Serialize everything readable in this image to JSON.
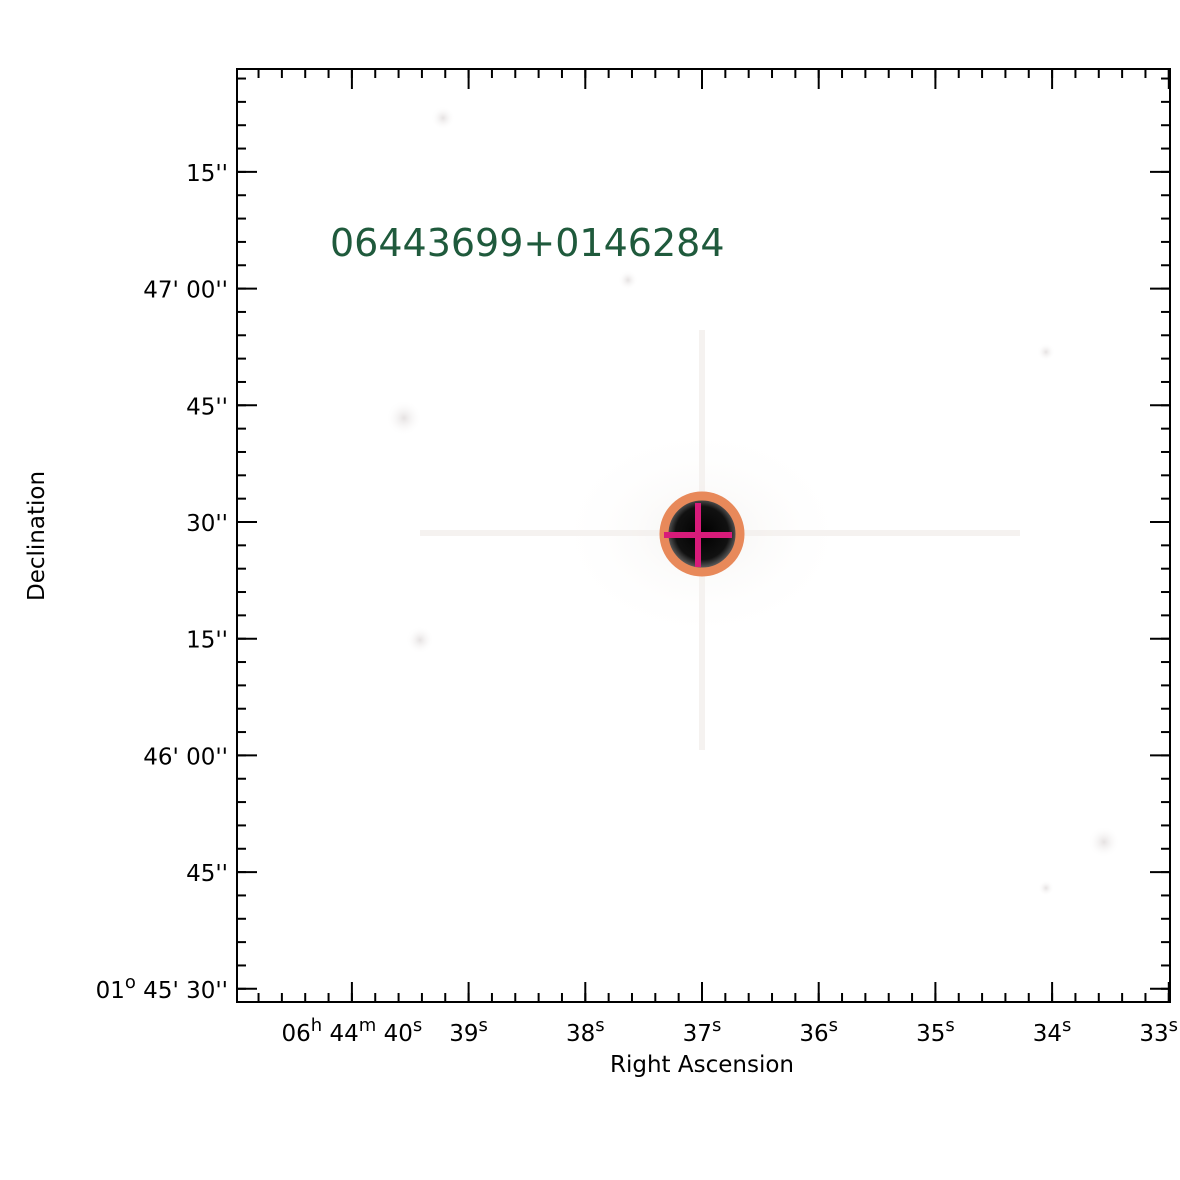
{
  "object_label": "06443699+0146284",
  "axes": {
    "xlabel": "Right Ascension",
    "ylabel": "Declination",
    "x_ticks": [
      {
        "parts": [
          {
            "t": "06"
          },
          {
            "t": "h",
            "sup": true
          },
          {
            "t": " 44"
          },
          {
            "t": "m",
            "sup": true
          },
          {
            "t": " 40"
          },
          {
            "t": "s",
            "sup": true
          }
        ],
        "ra_s": 40
      },
      {
        "parts": [
          {
            "t": "39"
          },
          {
            "t": "s",
            "sup": true
          }
        ],
        "ra_s": 39
      },
      {
        "parts": [
          {
            "t": "38"
          },
          {
            "t": "s",
            "sup": true
          }
        ],
        "ra_s": 38
      },
      {
        "parts": [
          {
            "t": "37"
          },
          {
            "t": "s",
            "sup": true
          }
        ],
        "ra_s": 37
      },
      {
        "parts": [
          {
            "t": "36"
          },
          {
            "t": "s",
            "sup": true
          }
        ],
        "ra_s": 36
      },
      {
        "parts": [
          {
            "t": "35"
          },
          {
            "t": "s",
            "sup": true
          }
        ],
        "ra_s": 35
      },
      {
        "parts": [
          {
            "t": "34"
          },
          {
            "t": "s",
            "sup": true
          }
        ],
        "ra_s": 34
      },
      {
        "parts": [
          {
            "t": "33"
          },
          {
            "t": "s",
            "sup": true
          }
        ],
        "ra_s": 33
      }
    ],
    "y_ticks": [
      {
        "parts": [
          {
            "t": "15''"
          }
        ],
        "dec_arcsec": 75
      },
      {
        "parts": [
          {
            "t": "47' 00''"
          }
        ],
        "dec_arcsec": 60
      },
      {
        "parts": [
          {
            "t": "45''"
          }
        ],
        "dec_arcsec": 45
      },
      {
        "parts": [
          {
            "t": "30''"
          }
        ],
        "dec_arcsec": 30
      },
      {
        "parts": [
          {
            "t": "15''"
          }
        ],
        "dec_arcsec": 15
      },
      {
        "parts": [
          {
            "t": "46' 00''"
          }
        ],
        "dec_arcsec": 0
      },
      {
        "parts": [
          {
            "t": "45''"
          }
        ],
        "dec_arcsec": -15
      },
      {
        "parts": [
          {
            "t": "01"
          },
          {
            "t": "o",
            "sup": true
          },
          {
            "t": " 45' 30''"
          }
        ],
        "dec_arcsec": -30
      }
    ]
  },
  "target": {
    "ra_s": 36.99,
    "dec_arcsec": 28.4
  },
  "colors": {
    "label": "#1f5a3c",
    "circle": "#e8895a",
    "cross": "#d81b7a",
    "star": "#000000"
  }
}
